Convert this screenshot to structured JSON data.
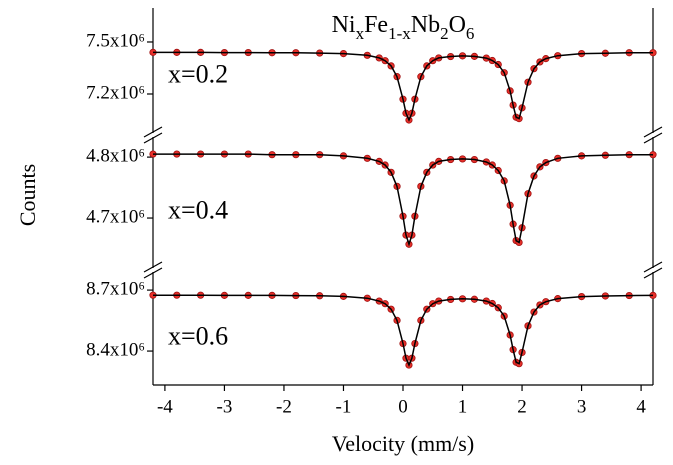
{
  "chart_data": {
    "type": "line",
    "title_parts": [
      "Ni",
      "x",
      "Fe",
      "1-x",
      "Nb",
      "2",
      "O",
      "6"
    ],
    "xlabel": "Velocity (mm/s)",
    "ylabel": "Counts",
    "xlim": [
      -4.2,
      4.2
    ],
    "xticks": [
      -4,
      -3,
      -2,
      -1,
      0,
      1,
      2,
      3,
      4
    ],
    "x": [
      -4.2,
      -3.8,
      -3.4,
      -3.0,
      -2.6,
      -2.2,
      -1.8,
      -1.4,
      -1.0,
      -0.6,
      -0.4,
      -0.3,
      -0.2,
      -0.1,
      0,
      0.05,
      0.1,
      0.15,
      0.2,
      0.3,
      0.4,
      0.5,
      0.6,
      0.8,
      1.0,
      1.2,
      1.4,
      1.5,
      1.6,
      1.7,
      1.8,
      1.85,
      1.9,
      1.95,
      2.0,
      2.1,
      2.2,
      2.3,
      2.4,
      2.6,
      3.0,
      3.4,
      3.8,
      4.2
    ],
    "fit_color": "#000000",
    "panels": [
      {
        "label": "x=0.2",
        "ylim": [
          6975000,
          7696000
        ],
        "yticks": [
          {
            "value": 7200000,
            "label": "7.2x10⁶"
          },
          {
            "value": 7500000,
            "label": "7.5x10⁶"
          }
        ],
        "series": [
          {
            "color": "#e8302a",
            "values": [
              7440000,
              7440000,
              7440000,
              7439000,
              7439000,
              7438000,
              7438000,
              7436000,
              7433000,
              7423000,
              7408000,
              7392000,
              7362000,
              7300000,
              7170000,
              7089000,
              7050000,
              7089000,
              7170000,
              7300000,
              7362000,
              7392000,
              7408000,
              7416000,
              7420000,
              7417000,
              7407000,
              7393000,
              7370000,
              7323000,
              7218000,
              7136000,
              7066000,
              7058000,
              7120000,
              7268000,
              7346000,
              7385000,
              7404000,
              7421000,
              7433000,
              7435000,
              7438000,
              7438000
            ]
          }
        ]
      },
      {
        "label": "x=0.4",
        "ylim": [
          4618000,
          4833000
        ],
        "yticks": [
          {
            "value": 4700000,
            "label": "4.7x10⁶"
          },
          {
            "value": 4800000,
            "label": "4.8x10⁶"
          }
        ],
        "series": [
          {
            "color": "#e8302a",
            "values": [
              4805000,
              4805000,
              4805000,
              4805000,
              4805000,
              4804000,
              4804000,
              4804000,
              4802000,
              4798000,
              4793000,
              4787000,
              4775000,
              4752000,
              4703000,
              4672000,
              4657000,
              4672000,
              4703000,
              4752000,
              4775000,
              4787000,
              4793000,
              4796000,
              4797000,
              4796000,
              4792000,
              4787000,
              4778000,
              4761000,
              4721000,
              4690000,
              4663000,
              4660000,
              4684000,
              4740000,
              4769000,
              4784000,
              4791000,
              4798000,
              4802000,
              4803000,
              4804000,
              4804000
            ]
          }
        ]
      },
      {
        "label": "x=0.6",
        "ylim": [
          8233000,
          8789000
        ],
        "yticks": [
          {
            "value": 8400000,
            "label": "8.4x10⁶"
          },
          {
            "value": 8700000,
            "label": "8.7x10⁶"
          }
        ],
        "series": [
          {
            "color": "#e8302a",
            "values": [
              8675000,
              8675000,
              8675000,
              8674000,
              8674000,
              8674000,
              8673000,
              8672000,
              8669000,
              8660000,
              8646000,
              8633000,
              8606000,
              8551000,
              8437000,
              8365000,
              8331000,
              8365000,
              8437000,
              8551000,
              8606000,
              8633000,
              8646000,
              8654000,
              8657000,
              8655000,
              8646000,
              8634000,
              8613000,
              8572000,
              8479000,
              8407000,
              8345000,
              8338000,
              8393000,
              8524000,
              8592000,
              8627000,
              8643000,
              8658000,
              8668000,
              8671000,
              8673000,
              8674000
            ]
          }
        ]
      }
    ]
  }
}
